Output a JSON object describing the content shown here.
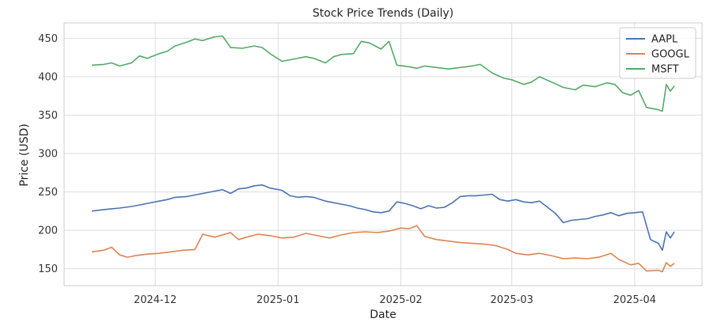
{
  "chart_data": {
    "type": "line",
    "title": "Stock Price Trends (Daily)",
    "xlabel": "Date",
    "ylabel": "Price (USD)",
    "x_ticks": [
      "2024-12",
      "2025-01",
      "2025-02",
      "2025-03",
      "2025-04"
    ],
    "x_tick_dates": [
      "2024-12-01",
      "2025-01-01",
      "2025-02-01",
      "2025-03-01",
      "2025-04-01"
    ],
    "xlim": [
      "2024-11-08",
      "2025-04-18"
    ],
    "y_ticks": [
      150,
      200,
      250,
      300,
      350,
      400,
      450
    ],
    "ylim": [
      128,
      470
    ],
    "grid": true,
    "legend_position": "top-right",
    "series": [
      {
        "name": "AAPL",
        "color": "#4c72b0",
        "points": [
          [
            "2024-11-15",
            225
          ],
          [
            "2024-11-18",
            227
          ],
          [
            "2024-11-20",
            228
          ],
          [
            "2024-11-22",
            229
          ],
          [
            "2024-11-25",
            231
          ],
          [
            "2024-11-27",
            233
          ],
          [
            "2024-11-29",
            235
          ],
          [
            "2024-12-02",
            238
          ],
          [
            "2024-12-04",
            240
          ],
          [
            "2024-12-06",
            243
          ],
          [
            "2024-12-09",
            244
          ],
          [
            "2024-12-11",
            246
          ],
          [
            "2024-12-13",
            248
          ],
          [
            "2024-12-16",
            251
          ],
          [
            "2024-12-18",
            253
          ],
          [
            "2024-12-20",
            248
          ],
          [
            "2024-12-22",
            254
          ],
          [
            "2024-12-24",
            255
          ],
          [
            "2024-12-26",
            258
          ],
          [
            "2024-12-28",
            259
          ],
          [
            "2024-12-30",
            255
          ],
          [
            "2025-01-02",
            252
          ],
          [
            "2025-01-04",
            245
          ],
          [
            "2025-01-06",
            243
          ],
          [
            "2025-01-08",
            244
          ],
          [
            "2025-01-10",
            243
          ],
          [
            "2025-01-13",
            238
          ],
          [
            "2025-01-15",
            236
          ],
          [
            "2025-01-17",
            234
          ],
          [
            "2025-01-19",
            232
          ],
          [
            "2025-01-21",
            229
          ],
          [
            "2025-01-23",
            227
          ],
          [
            "2025-01-25",
            224
          ],
          [
            "2025-01-27",
            223
          ],
          [
            "2025-01-29",
            225
          ],
          [
            "2025-01-31",
            237
          ],
          [
            "2025-02-02",
            235
          ],
          [
            "2025-02-04",
            232
          ],
          [
            "2025-02-06",
            228
          ],
          [
            "2025-02-08",
            232
          ],
          [
            "2025-02-10",
            229
          ],
          [
            "2025-02-12",
            230
          ],
          [
            "2025-02-14",
            236
          ],
          [
            "2025-02-16",
            244
          ],
          [
            "2025-02-18",
            245
          ],
          [
            "2025-02-20",
            245
          ],
          [
            "2025-02-22",
            246
          ],
          [
            "2025-02-24",
            247
          ],
          [
            "2025-02-26",
            240
          ],
          [
            "2025-02-28",
            238
          ],
          [
            "2025-03-02",
            240
          ],
          [
            "2025-03-04",
            237
          ],
          [
            "2025-03-06",
            236
          ],
          [
            "2025-03-08",
            238
          ],
          [
            "2025-03-10",
            230
          ],
          [
            "2025-03-12",
            222
          ],
          [
            "2025-03-14",
            210
          ],
          [
            "2025-03-16",
            213
          ],
          [
            "2025-03-18",
            214
          ],
          [
            "2025-03-20",
            215
          ],
          [
            "2025-03-22",
            218
          ],
          [
            "2025-03-24",
            220
          ],
          [
            "2025-03-26",
            223
          ],
          [
            "2025-03-28",
            219
          ],
          [
            "2025-03-30",
            222
          ],
          [
            "2025-04-01",
            223
          ],
          [
            "2025-04-03",
            224
          ],
          [
            "2025-04-05",
            188
          ],
          [
            "2025-04-07",
            183
          ],
          [
            "2025-04-08",
            174
          ],
          [
            "2025-04-09",
            198
          ],
          [
            "2025-04-10",
            190
          ],
          [
            "2025-04-11",
            198
          ]
        ]
      },
      {
        "name": "GOOGL",
        "color": "#dd8452",
        "points": [
          [
            "2024-11-15",
            172
          ],
          [
            "2024-11-18",
            174
          ],
          [
            "2024-11-20",
            178
          ],
          [
            "2024-11-22",
            168
          ],
          [
            "2024-11-24",
            165
          ],
          [
            "2024-11-26",
            167
          ],
          [
            "2024-11-29",
            169
          ],
          [
            "2024-12-02",
            170
          ],
          [
            "2024-12-05",
            172
          ],
          [
            "2024-12-08",
            174
          ],
          [
            "2024-12-11",
            175
          ],
          [
            "2024-12-13",
            195
          ],
          [
            "2024-12-16",
            191
          ],
          [
            "2024-12-18",
            194
          ],
          [
            "2024-12-20",
            197
          ],
          [
            "2024-12-22",
            188
          ],
          [
            "2024-12-24",
            191
          ],
          [
            "2024-12-27",
            195
          ],
          [
            "2024-12-30",
            193
          ],
          [
            "2025-01-02",
            190
          ],
          [
            "2025-01-05",
            191
          ],
          [
            "2025-01-08",
            196
          ],
          [
            "2025-01-11",
            193
          ],
          [
            "2025-01-14",
            190
          ],
          [
            "2025-01-17",
            194
          ],
          [
            "2025-01-20",
            197
          ],
          [
            "2025-01-23",
            198
          ],
          [
            "2025-01-26",
            197
          ],
          [
            "2025-01-29",
            199
          ],
          [
            "2025-02-01",
            203
          ],
          [
            "2025-02-03",
            202
          ],
          [
            "2025-02-05",
            206
          ],
          [
            "2025-02-07",
            192
          ],
          [
            "2025-02-10",
            188
          ],
          [
            "2025-02-13",
            186
          ],
          [
            "2025-02-16",
            184
          ],
          [
            "2025-02-19",
            183
          ],
          [
            "2025-02-22",
            182
          ],
          [
            "2025-02-25",
            180
          ],
          [
            "2025-02-28",
            175
          ],
          [
            "2025-03-02",
            170
          ],
          [
            "2025-03-05",
            168
          ],
          [
            "2025-03-08",
            170
          ],
          [
            "2025-03-11",
            167
          ],
          [
            "2025-03-14",
            163
          ],
          [
            "2025-03-17",
            164
          ],
          [
            "2025-03-20",
            163
          ],
          [
            "2025-03-23",
            165
          ],
          [
            "2025-03-26",
            170
          ],
          [
            "2025-03-28",
            162
          ],
          [
            "2025-03-31",
            155
          ],
          [
            "2025-04-02",
            157
          ],
          [
            "2025-04-04",
            147
          ],
          [
            "2025-04-07",
            148
          ],
          [
            "2025-04-08",
            146
          ],
          [
            "2025-04-09",
            158
          ],
          [
            "2025-04-10",
            153
          ],
          [
            "2025-04-11",
            157
          ]
        ]
      },
      {
        "name": "MSFT",
        "color": "#55a868",
        "points": [
          [
            "2024-11-15",
            415
          ],
          [
            "2024-11-18",
            416
          ],
          [
            "2024-11-20",
            418
          ],
          [
            "2024-11-22",
            414
          ],
          [
            "2024-11-25",
            418
          ],
          [
            "2024-11-27",
            427
          ],
          [
            "2024-11-29",
            424
          ],
          [
            "2024-12-02",
            430
          ],
          [
            "2024-12-04",
            433
          ],
          [
            "2024-12-06",
            440
          ],
          [
            "2024-12-09",
            445
          ],
          [
            "2024-12-11",
            449
          ],
          [
            "2024-12-13",
            447
          ],
          [
            "2024-12-16",
            452
          ],
          [
            "2024-12-18",
            453
          ],
          [
            "2024-12-20",
            438
          ],
          [
            "2024-12-23",
            437
          ],
          [
            "2024-12-26",
            440
          ],
          [
            "2024-12-28",
            438
          ],
          [
            "2024-12-30",
            430
          ],
          [
            "2025-01-02",
            420
          ],
          [
            "2025-01-05",
            423
          ],
          [
            "2025-01-08",
            426
          ],
          [
            "2025-01-10",
            424
          ],
          [
            "2025-01-13",
            418
          ],
          [
            "2025-01-15",
            426
          ],
          [
            "2025-01-17",
            429
          ],
          [
            "2025-01-20",
            430
          ],
          [
            "2025-01-22",
            446
          ],
          [
            "2025-01-24",
            444
          ],
          [
            "2025-01-27",
            436
          ],
          [
            "2025-01-29",
            446
          ],
          [
            "2025-01-31",
            415
          ],
          [
            "2025-02-03",
            413
          ],
          [
            "2025-02-05",
            411
          ],
          [
            "2025-02-07",
            414
          ],
          [
            "2025-02-10",
            412
          ],
          [
            "2025-02-13",
            410
          ],
          [
            "2025-02-16",
            412
          ],
          [
            "2025-02-19",
            414
          ],
          [
            "2025-02-21",
            416
          ],
          [
            "2025-02-24",
            405
          ],
          [
            "2025-02-27",
            398
          ],
          [
            "2025-03-01",
            396
          ],
          [
            "2025-03-04",
            390
          ],
          [
            "2025-03-06",
            393
          ],
          [
            "2025-03-08",
            400
          ],
          [
            "2025-03-11",
            393
          ],
          [
            "2025-03-14",
            386
          ],
          [
            "2025-03-17",
            383
          ],
          [
            "2025-03-19",
            389
          ],
          [
            "2025-03-22",
            387
          ],
          [
            "2025-03-25",
            392
          ],
          [
            "2025-03-27",
            390
          ],
          [
            "2025-03-29",
            379
          ],
          [
            "2025-03-31",
            376
          ],
          [
            "2025-04-02",
            382
          ],
          [
            "2025-04-04",
            360
          ],
          [
            "2025-04-07",
            357
          ],
          [
            "2025-04-08",
            355
          ],
          [
            "2025-04-09",
            390
          ],
          [
            "2025-04-10",
            381
          ],
          [
            "2025-04-11",
            388
          ]
        ]
      }
    ]
  }
}
